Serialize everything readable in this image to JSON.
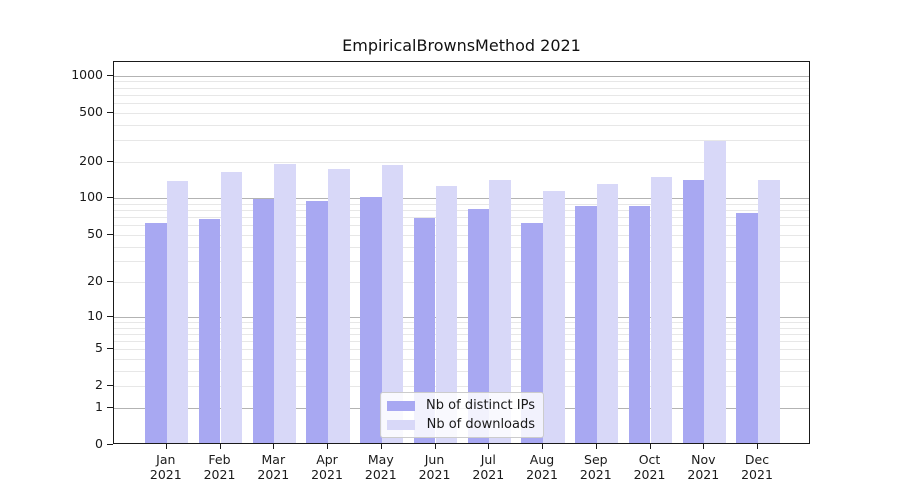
{
  "title": "EmpiricalBrownsMethod 2021",
  "colors": {
    "ips": "#a8a8f2",
    "downloads": "#d8d8f8",
    "grid_major": "#b3b3b3",
    "grid_minor": "#e7e7e7",
    "spine": "#1a1a1a"
  },
  "legend": {
    "items": [
      {
        "label": "Nb of distinct IPs",
        "series": "ips"
      },
      {
        "label": "Nb of downloads",
        "series": "downloads"
      }
    ]
  },
  "y_axis": {
    "tick_labels": [
      "0",
      "1",
      "2",
      "5",
      "10",
      "20",
      "50",
      "100",
      "200",
      "500",
      "1000"
    ]
  },
  "x_axis": {
    "months": [
      "Jan",
      "Feb",
      "Mar",
      "Apr",
      "May",
      "Jun",
      "Jul",
      "Aug",
      "Sep",
      "Oct",
      "Nov",
      "Dec"
    ],
    "year": "2021"
  },
  "chart_data": {
    "type": "bar",
    "title": "EmpiricalBrownsMethod 2021",
    "categories": [
      "Jan 2021",
      "Feb 2021",
      "Mar 2021",
      "Apr 2021",
      "May 2021",
      "Jun 2021",
      "Jul 2021",
      "Aug 2021",
      "Sep 2021",
      "Oct 2021",
      "Nov 2021",
      "Dec 2021"
    ],
    "series": [
      {
        "name": "Nb of distinct IPs",
        "values": [
          61,
          66,
          96,
          93,
          100,
          67,
          80,
          61,
          85,
          85,
          139,
          74
        ]
      },
      {
        "name": "Nb of downloads",
        "values": [
          137,
          162,
          188,
          170,
          184,
          124,
          138,
          112,
          128,
          147,
          290,
          139
        ]
      }
    ],
    "xlabel": "",
    "ylabel": "",
    "yscale": "symlog (log10 of 1+value)",
    "yticks": [
      0,
      1,
      2,
      5,
      10,
      20,
      50,
      100,
      200,
      500,
      1000
    ],
    "ylim": [
      0,
      1280
    ],
    "grid": true,
    "legend_position": "lower center"
  }
}
